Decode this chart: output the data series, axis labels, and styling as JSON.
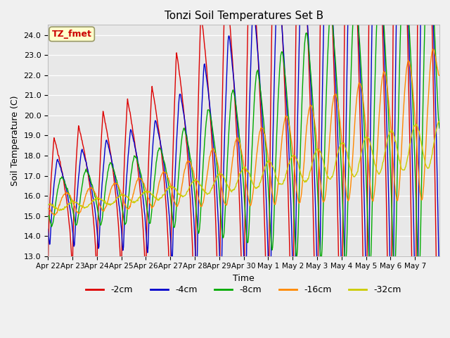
{
  "title": "Tonzi Soil Temperatures Set B",
  "xlabel": "Time",
  "ylabel": "Soil Temperature (C)",
  "ylim": [
    13.0,
    24.5
  ],
  "yticks": [
    13.0,
    14.0,
    15.0,
    16.0,
    17.0,
    18.0,
    19.0,
    20.0,
    21.0,
    22.0,
    23.0,
    24.0
  ],
  "annotation_label": "TZ_fmet",
  "annotation_color": "#cc0000",
  "annotation_bg": "#ffffcc",
  "plot_bg_color": "#e8e8e8",
  "fig_bg_color": "#f0f0f0",
  "series": [
    {
      "label": "-2cm",
      "color": "#dd0000"
    },
    {
      "label": "-4cm",
      "color": "#0000cc"
    },
    {
      "label": "-8cm",
      "color": "#00aa00"
    },
    {
      "label": "-16cm",
      "color": "#ff8800"
    },
    {
      "label": "-32cm",
      "color": "#cccc00"
    }
  ],
  "xtick_labels": [
    "Apr 22",
    "Apr 23",
    "Apr 24",
    "Apr 25",
    "Apr 26",
    "Apr 27",
    "Apr 28",
    "Apr 29",
    "Apr 30",
    "May 1",
    "May 2",
    "May 3",
    "May 4",
    "May 5",
    "May 6",
    "May 7"
  ],
  "n_days": 16,
  "samples_per_day": 48,
  "figsize": [
    6.4,
    4.8
  ],
  "dpi": 100
}
